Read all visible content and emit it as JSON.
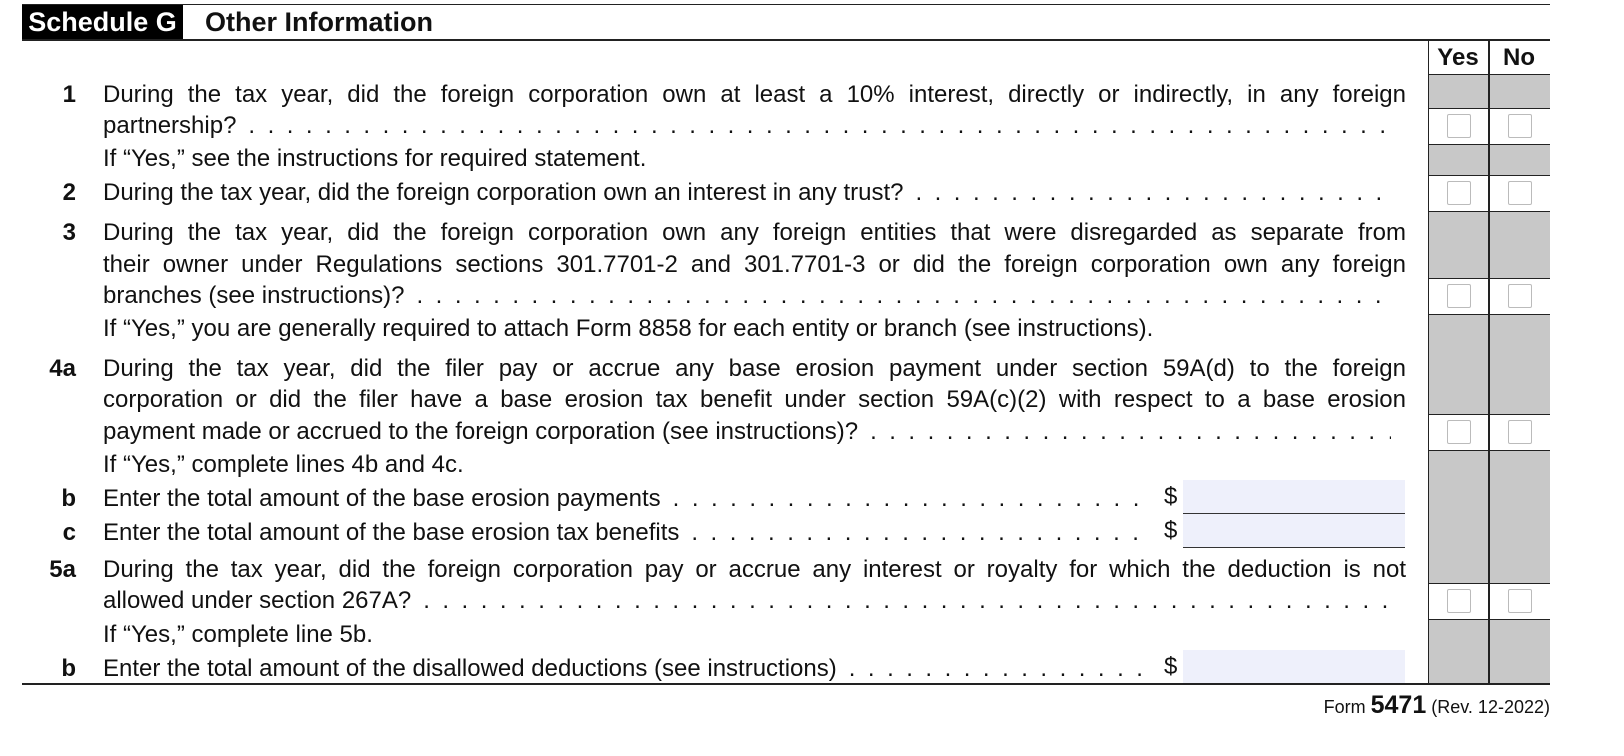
{
  "header": {
    "schedule": "Schedule G",
    "title": "Other Information"
  },
  "columns": [
    "Yes",
    "No"
  ],
  "items": [
    {
      "number": "1",
      "lines": [
        "During the tax year, did the foreign corporation own at least a 10% interest, directly or indirectly, in any foreign",
        "partnership?"
      ],
      "note": "If “Yes,” see the instructions for required statement."
    },
    {
      "number": "2",
      "lines": [
        "During the tax year, did the foreign corporation own an interest in any trust?"
      ]
    },
    {
      "number": "3",
      "lines": [
        "During the tax year, did the foreign corporation own any foreign entities that were disregarded as separate from",
        "their owner under Regulations sections 301.7701-2 and 301.7701-3 or did the foreign corporation own any foreign",
        "branches (see instructions)?"
      ],
      "note": "If “Yes,” you are generally required to attach Form 8858 for each entity or branch (see instructions)."
    },
    {
      "number": "4a",
      "lines": [
        "During the tax year, did the filer pay or accrue any base erosion payment under section 59A(d) to the foreign",
        "corporation or did the filer have a base erosion tax benefit under section 59A(c)(2) with respect to a base erosion",
        "payment made or accrued to the foreign corporation (see instructions)?"
      ],
      "note": "If “Yes,” complete lines 4b and 4c."
    },
    {
      "number": "b",
      "lines": [
        "Enter the total amount of the base erosion payments"
      ],
      "currency": "$"
    },
    {
      "number": "c",
      "lines": [
        "Enter the total amount of the base erosion tax benefits"
      ],
      "currency": "$"
    },
    {
      "number": "5a",
      "lines": [
        "During the tax year, did the foreign corporation pay or accrue any interest or royalty for which the deduction is not",
        "allowed under section 267A?"
      ],
      "note": "If “Yes,” complete line 5b."
    },
    {
      "number": "b",
      "lines": [
        "Enter the total amount of the disallowed deductions (see instructions)"
      ],
      "currency": "$"
    }
  ],
  "footer": {
    "form_label": "Form",
    "form_number": "5471",
    "revision": "(Rev. 12-2022)"
  }
}
